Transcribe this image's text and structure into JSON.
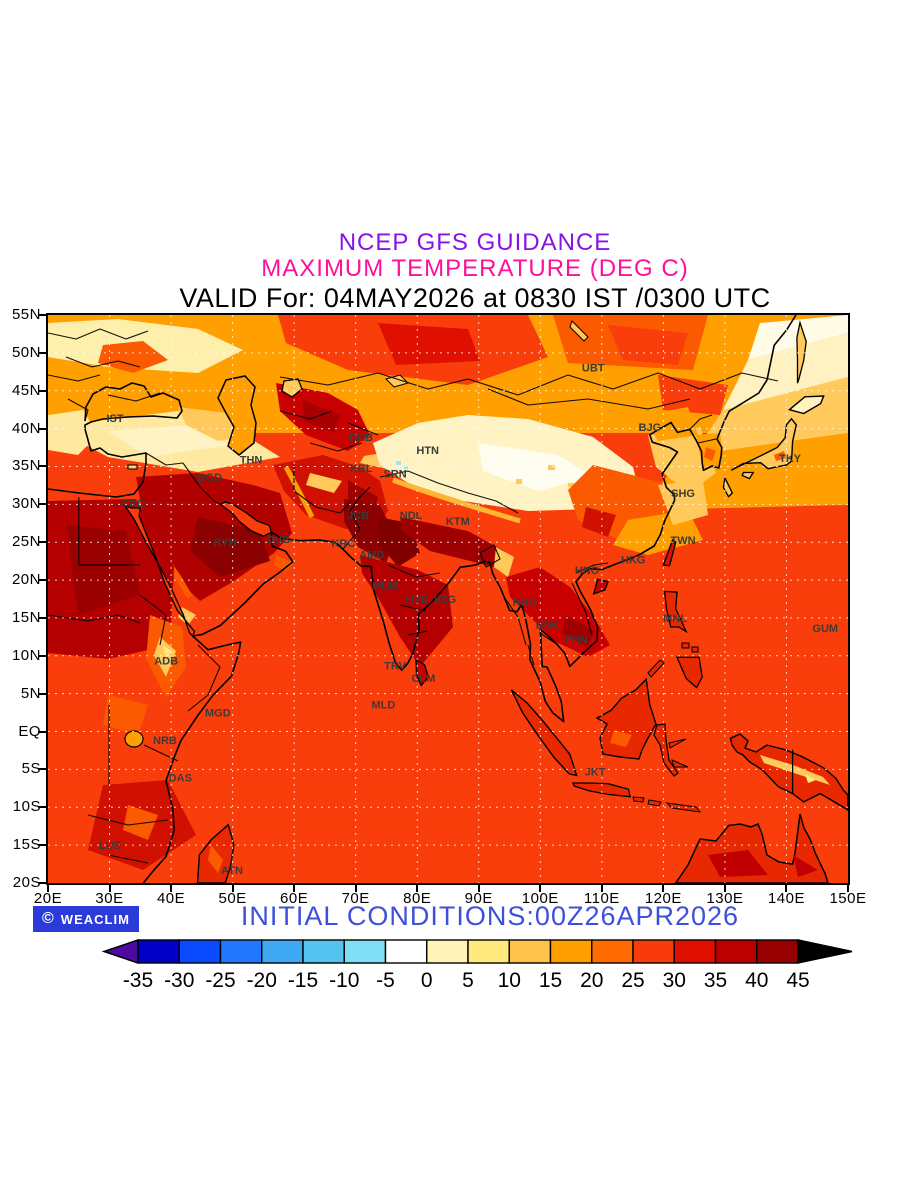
{
  "header": {
    "line1": "NCEP GFS GUIDANCE",
    "line2": "MAXIMUM TEMPERATURE (DEG C)",
    "line3": "VALID For: 04MAY2026 at 0830 IST /0300 UTC"
  },
  "colors": {
    "line1": "#8912E8",
    "line2": "#FF1099",
    "line3": "#000000",
    "initial_conditions": "#3C50DC",
    "badge_bg": "#2B3BD9",
    "badge_text": "#FFFFFF",
    "ocean": "#F93E0C",
    "gridline": "rgba(255,255,255,0.8)"
  },
  "map": {
    "lon_range": [
      20,
      150
    ],
    "lat_range": [
      -20,
      55
    ],
    "lat_labels": [
      "55N",
      "50N",
      "45N",
      "40N",
      "35N",
      "30N",
      "25N",
      "20N",
      "15N",
      "10N",
      "5N",
      "EQ",
      "5S",
      "10S",
      "15S",
      "20S"
    ],
    "lon_labels": [
      "20E",
      "30E",
      "40E",
      "50E",
      "60E",
      "70E",
      "80E",
      "90E",
      "100E",
      "110E",
      "120E",
      "130E",
      "140E",
      "150E"
    ],
    "stations": [
      {
        "code": "IST",
        "lon": 30.9,
        "lat": 41.4
      },
      {
        "code": "THN",
        "lon": 53.0,
        "lat": 35.9
      },
      {
        "code": "BGD",
        "lon": 46.3,
        "lat": 33.6
      },
      {
        "code": "CRO",
        "lon": 33.8,
        "lat": 30.2
      },
      {
        "code": "RYH",
        "lon": 48.8,
        "lat": 25.0
      },
      {
        "code": "DUB",
        "lon": 57.4,
        "lat": 25.4
      },
      {
        "code": "ADB",
        "lon": 39.2,
        "lat": 9.4
      },
      {
        "code": "MGD",
        "lon": 47.6,
        "lat": 2.5
      },
      {
        "code": "NRB",
        "lon": 39.0,
        "lat": -1.1
      },
      {
        "code": "DAS",
        "lon": 41.5,
        "lat": -6.1
      },
      {
        "code": "LUS",
        "lon": 30.1,
        "lat": -15.0
      },
      {
        "code": "ATN",
        "lon": 49.9,
        "lat": -18.3
      },
      {
        "code": "DHB",
        "lon": 70.9,
        "lat": 38.9
      },
      {
        "code": "HTN",
        "lon": 81.7,
        "lat": 37.2
      },
      {
        "code": "KBL",
        "lon": 70.9,
        "lat": 34.8
      },
      {
        "code": "SRN",
        "lon": 76.4,
        "lat": 34.1
      },
      {
        "code": "JCB",
        "lon": 70.4,
        "lat": 28.6
      },
      {
        "code": "NDL",
        "lon": 79.0,
        "lat": 28.6
      },
      {
        "code": "KTM",
        "lon": 86.6,
        "lat": 27.8
      },
      {
        "code": "KRC",
        "lon": 68.0,
        "lat": 24.9
      },
      {
        "code": "AMD",
        "lon": 72.6,
        "lat": 23.4
      },
      {
        "code": "MUM",
        "lon": 74.8,
        "lat": 19.3
      },
      {
        "code": "HYD",
        "lon": 80.0,
        "lat": 17.5
      },
      {
        "code": "VZG",
        "lon": 84.5,
        "lat": 17.5
      },
      {
        "code": "TRV",
        "lon": 76.4,
        "lat": 8.7
      },
      {
        "code": "CLM",
        "lon": 81.0,
        "lat": 7.1
      },
      {
        "code": "MLD",
        "lon": 74.5,
        "lat": 3.6
      },
      {
        "code": "RNG",
        "lon": 97.5,
        "lat": 17.1
      },
      {
        "code": "BNK",
        "lon": 101.2,
        "lat": 14.1
      },
      {
        "code": "PHN",
        "lon": 105.8,
        "lat": 12.2
      },
      {
        "code": "HNO",
        "lon": 107.6,
        "lat": 21.3
      },
      {
        "code": "HKG",
        "lon": 115.1,
        "lat": 22.7
      },
      {
        "code": "TWN",
        "lon": 123.2,
        "lat": 25.3
      },
      {
        "code": "SHG",
        "lon": 123.2,
        "lat": 31.5
      },
      {
        "code": "BJG",
        "lon": 117.8,
        "lat": 40.2
      },
      {
        "code": "UBT",
        "lon": 108.6,
        "lat": 48.1
      },
      {
        "code": "TKY",
        "lon": 140.6,
        "lat": 36.1
      },
      {
        "code": "MNL",
        "lon": 121.9,
        "lat": 15.0
      },
      {
        "code": "GUM",
        "lon": 146.3,
        "lat": 13.7
      },
      {
        "code": "JKT",
        "lon": 108.9,
        "lat": -5.3
      }
    ]
  },
  "footer": {
    "credit_icon": "©",
    "credit_text": "WEACLIM",
    "initial_conditions": "INITIAL CONDITIONS:00Z26APR2026"
  },
  "colorbar": {
    "tick_labels": [
      "-35",
      "-30",
      "-25",
      "-20",
      "-15",
      "-10",
      "-5",
      "0",
      "5",
      "10",
      "15",
      "20",
      "25",
      "30",
      "35",
      "40",
      "45"
    ],
    "segment_colors": [
      "#0000C8",
      "#0B4BFF",
      "#2277FF",
      "#3FA8F5",
      "#55C3F0",
      "#7FE0F5",
      "#FFFFFF",
      "#FFF3B8",
      "#FFE87E",
      "#FFC34B",
      "#FF9F00",
      "#FF6B00",
      "#F93A0A",
      "#E01000",
      "#BB0000",
      "#980000"
    ],
    "left_arrow_color": "#4B0AA0",
    "right_arrow_color": "#000000"
  }
}
